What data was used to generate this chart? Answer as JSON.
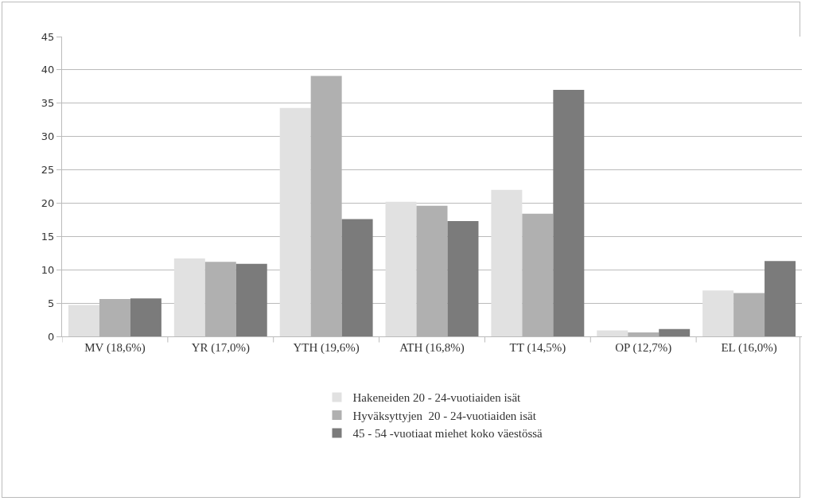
{
  "chart_data": {
    "type": "bar",
    "categories": [
      "MV (18,6%)",
      "YR (17,0%)",
      "YTH (19,6%)",
      "ATH (16,8%)",
      "TT (14,5%)",
      "OP (12,7%)",
      "EL (16,0%)"
    ],
    "series": [
      {
        "name": "Hakeneiden 20 - 24-vuotiaiden isät",
        "color": "#e1e1e1",
        "values": [
          4.7,
          11.7,
          34.3,
          20.2,
          22.0,
          0.9,
          6.9
        ]
      },
      {
        "name": "Hyväksyttyjen  20 - 24-vuotiaiden isät",
        "color": "#b0b0b0",
        "values": [
          5.6,
          11.2,
          39.1,
          19.6,
          18.4,
          0.6,
          6.5
        ]
      },
      {
        "name": "45 - 54 -vuotiaat miehet koko väestössä",
        "color": "#7b7b7b",
        "values": [
          5.7,
          10.9,
          17.6,
          17.3,
          37.0,
          1.1,
          11.3
        ]
      }
    ],
    "ylim": [
      0,
      45
    ],
    "yticks": [
      0,
      5,
      10,
      15,
      20,
      25,
      30,
      35,
      40,
      45
    ],
    "grid": "y",
    "legend": "bottom"
  }
}
